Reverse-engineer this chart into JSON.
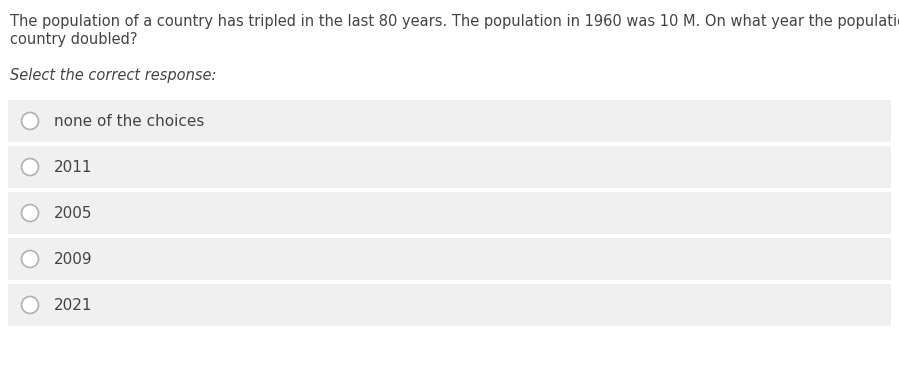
{
  "question_text_line1": "The population of a country has tripled in the last 80 years. The population in 1960 was 10 M. On what year the population of the",
  "question_text_line2": "country doubled?",
  "select_label": "Select the correct response:",
  "choices": [
    "none of the choices",
    "2011",
    "2005",
    "2009",
    "2021"
  ],
  "bg_color": "#ffffff",
  "choice_bg_color": "#f0f0f0",
  "question_font_size": 10.5,
  "select_font_size": 10.5,
  "choice_font_size": 11,
  "circle_edge_color": "#b0b0b0",
  "text_color": "#444444",
  "fig_width": 8.99,
  "fig_height": 3.77,
  "dpi": 100
}
